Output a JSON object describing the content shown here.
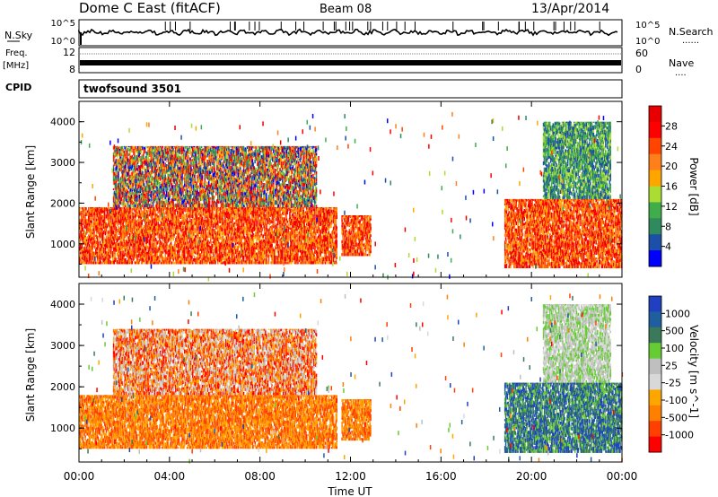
{
  "header": {
    "station": "Dome C East (fitACF)",
    "beam": "Beam 08",
    "date": "13/Apr/2014"
  },
  "strip_panels": {
    "nsky_label": "N.Sky",
    "nsky_ticks": [
      "10^5",
      "10^0"
    ],
    "nsearch_label": "N.Search",
    "nsearch_ticks": [
      "10^5",
      "10^0"
    ],
    "freq_label_1": "Freq.",
    "freq_label_2": "[MHz]",
    "freq_ticks": [
      "12",
      "8"
    ],
    "nave_label": "Nave",
    "nave_ticks": [
      "60",
      "0"
    ],
    "cpid_label": "CPID",
    "cpid_value": "twofsound 3501"
  },
  "colors": {
    "power_scale": [
      "#0000ff",
      "#1c4fa8",
      "#2f8a5e",
      "#3fae4a",
      "#aadc32",
      "#ffa500",
      "#ff7f1a",
      "#ff4500",
      "#ff0000",
      "#e80000"
    ],
    "velocity_scale": [
      "#ff0000",
      "#ff4000",
      "#ff8000",
      "#ffa500",
      "#d8d8d8",
      "#bfbfbf",
      "#66cc33",
      "#3a7a5a",
      "#1f5fa0",
      "#2040c0"
    ]
  },
  "chart_data": [
    {
      "type": "heatmap",
      "title": "",
      "variable": "Power",
      "xlabel": "",
      "ylabel": "Slant Range [km]",
      "colorbar_label": "Power [dB]",
      "colorbar_ticks": [
        "28",
        "24",
        "20",
        "16",
        "12",
        "8",
        "4"
      ],
      "xlim_hours": [
        0,
        24
      ],
      "ylim_km": [
        180,
        4500
      ],
      "yticks": [
        "4000",
        "3000",
        "2000",
        "1000"
      ],
      "xticks": [
        "00:00",
        "04:00",
        "08:00",
        "12:00",
        "16:00",
        "20:00",
        "00:00"
      ],
      "regions": [
        {
          "t0": 0.0,
          "t1": 11.4,
          "r0": 500,
          "r1": 1900,
          "level": "high"
        },
        {
          "t0": 1.5,
          "t1": 10.5,
          "r0": 1900,
          "r1": 3400,
          "level": "mixed"
        },
        {
          "t0": 11.6,
          "t1": 12.9,
          "r0": 700,
          "r1": 1700,
          "level": "high"
        },
        {
          "t0": 18.8,
          "t1": 24.0,
          "r0": 400,
          "r1": 2100,
          "level": "high"
        },
        {
          "t0": 20.5,
          "t1": 23.5,
          "r0": 2100,
          "r1": 4000,
          "level": "low"
        }
      ]
    },
    {
      "type": "heatmap",
      "title": "",
      "variable": "Velocity",
      "xlabel": "Time UT",
      "ylabel": "Slant Range [km]",
      "colorbar_label": "Velocity [m s^-1]",
      "colorbar_ticks": [
        "1000",
        "500",
        "100",
        "25",
        "-25",
        "-100",
        "-500",
        "-1000"
      ],
      "xlim_hours": [
        0,
        24
      ],
      "ylim_km": [
        180,
        4500
      ],
      "yticks": [
        "4000",
        "3000",
        "2000",
        "1000"
      ],
      "xticks": [
        "00:00",
        "04:00",
        "08:00",
        "12:00",
        "16:00",
        "20:00",
        "00:00"
      ],
      "regions": [
        {
          "t0": 0.0,
          "t1": 11.4,
          "r0": 500,
          "r1": 1800,
          "level": "away"
        },
        {
          "t0": 1.5,
          "t1": 10.5,
          "r0": 1800,
          "r1": 3400,
          "level": "mixed"
        },
        {
          "t0": 11.6,
          "t1": 12.9,
          "r0": 700,
          "r1": 1700,
          "level": "away"
        },
        {
          "t0": 18.8,
          "t1": 24.0,
          "r0": 400,
          "r1": 2100,
          "level": "toward"
        },
        {
          "t0": 20.5,
          "t1": 23.5,
          "r0": 2100,
          "r1": 4000,
          "level": "ground"
        }
      ]
    }
  ]
}
